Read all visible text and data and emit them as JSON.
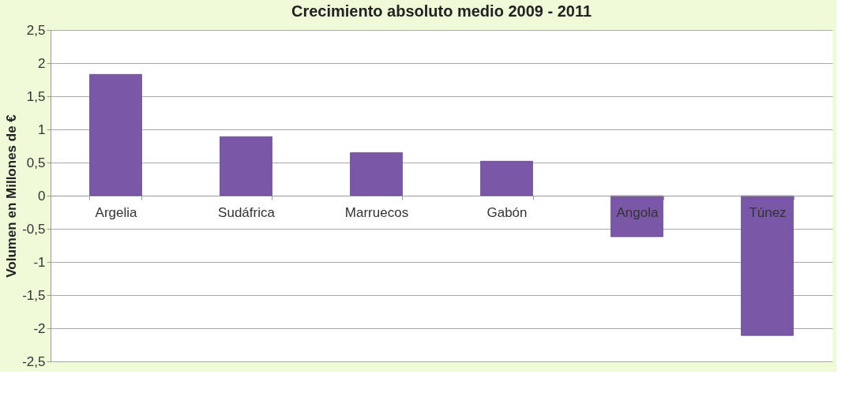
{
  "chart_data": {
    "type": "bar",
    "title": "Crecimiento absoluto medio 2009 - 2011",
    "ylabel": "Volumen en Millones de €",
    "categories": [
      "Argelia",
      "Sudáfrica",
      "Marruecos",
      "Gabón",
      "Angola",
      "Túnez"
    ],
    "values": [
      1.83,
      0.89,
      0.65,
      0.52,
      -0.62,
      -2.11
    ],
    "color": "#7b57a8",
    "ylim": [
      -2.5,
      2.5
    ],
    "yticks": [
      {
        "value": -2.5,
        "label": "-2,5"
      },
      {
        "value": -2,
        "label": "-2"
      },
      {
        "value": -1.5,
        "label": "-1,5"
      },
      {
        "value": -1,
        "label": "-1"
      },
      {
        "value": -0.5,
        "label": "-0,5"
      },
      {
        "value": 0,
        "label": "0"
      },
      {
        "value": 0.5,
        "label": "0,5"
      },
      {
        "value": 1,
        "label": "1"
      },
      {
        "value": 1.5,
        "label": "1,5"
      },
      {
        "value": 2,
        "label": "2"
      },
      {
        "value": 2.5,
        "label": "2,5"
      }
    ],
    "grid": "y"
  }
}
